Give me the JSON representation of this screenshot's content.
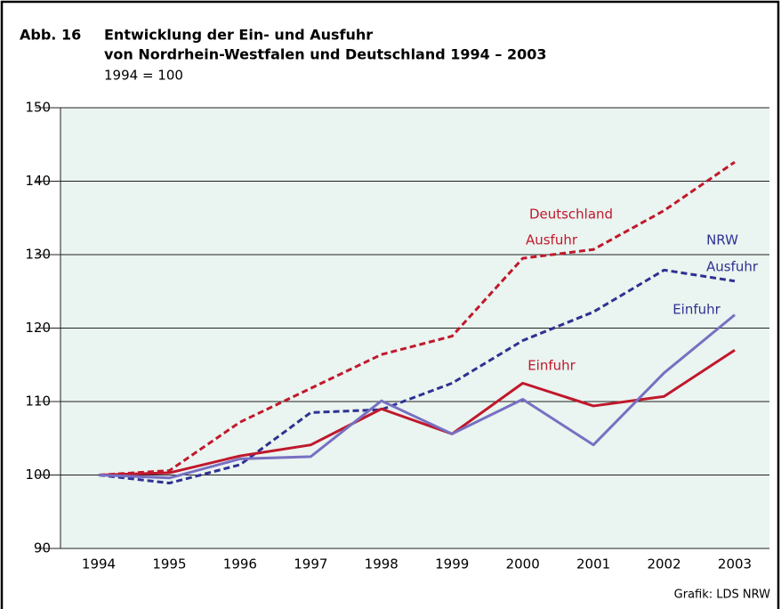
{
  "chart_data": {
    "type": "line",
    "label": "Abb. 16",
    "title": "Entwicklung der Ein- und Ausfuhr",
    "title_line2": "von Nordrhein-Westfalen und Deutschland 1994 – 2003",
    "subtitle": "1994 = 100",
    "source": "Grafik: LDS NRW",
    "categories": [
      "1994",
      "1995",
      "1996",
      "1997",
      "1998",
      "1999",
      "2000",
      "2001",
      "2002",
      "2003"
    ],
    "series": [
      {
        "color": "#c0182c",
        "dashed": true,
        "values": [
          100,
          100.6,
          107.2,
          111.8,
          116.4,
          118.9,
          129.5,
          130.7,
          136,
          142.6
        ]
      },
      {
        "color": "#2e3192",
        "dashed": true,
        "values": [
          100,
          98.9,
          101.4,
          108.5,
          108.9,
          112.5,
          118.3,
          122.2,
          127.9,
          126.4
        ]
      },
      {
        "color": "#c0182c",
        "dashed": false,
        "values": [
          100,
          100.3,
          102.6,
          104.1,
          109,
          105.6,
          112.5,
          109.4,
          110.7,
          117
        ]
      },
      {
        "color": "#7770c2",
        "dashed": false,
        "values": [
          100,
          99.6,
          102.2,
          102.5,
          110.1,
          105.6,
          110.3,
          104.1,
          113.9,
          121.8
        ]
      }
    ],
    "annotations": [
      {
        "text": "Deutschland",
        "color": "#c0182c"
      },
      {
        "text": "Ausfuhr",
        "color": "#c0182c"
      },
      {
        "text": "NRW",
        "color": "#2e3192"
      },
      {
        "text": "Ausfuhr",
        "color": "#2e3192"
      },
      {
        "text": "Einfuhr",
        "color": "#2e3192"
      },
      {
        "text": "Einfuhr",
        "color": "#c0182c"
      }
    ],
    "ylim": [
      90,
      150
    ],
    "yticks": [
      90,
      100,
      110,
      120,
      130,
      140,
      150
    ],
    "grid": true,
    "background": "#eaf4f0"
  }
}
